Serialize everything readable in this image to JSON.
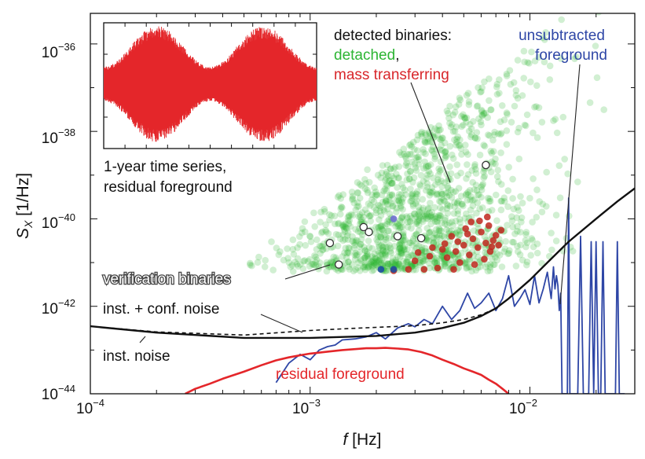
{
  "chart_data": {
    "type": "scatter",
    "title": "",
    "xlabel_var": "f",
    "xlabel_unit": " [Hz]",
    "ylabel_var": "S",
    "ylabel_sub": "X",
    "ylabel_unit": " [1/Hz]",
    "x_scale": "log",
    "y_scale": "log",
    "xlim": [
      0.0001,
      0.03
    ],
    "ylim": [
      1e-44,
      5e-36
    ],
    "x_ticks": [
      {
        "value": 0.0001,
        "label_base": "10",
        "label_exp": "−4"
      },
      {
        "value": 0.001,
        "label_base": "10",
        "label_exp": "−3"
      },
      {
        "value": 0.01,
        "label_base": "10",
        "label_exp": "−2"
      }
    ],
    "y_ticks": [
      {
        "value": 1e-44,
        "label_base": "10",
        "label_exp": "−44"
      },
      {
        "value": 1e-42,
        "label_base": "10",
        "label_exp": "−42"
      },
      {
        "value": 1e-40,
        "label_base": "10",
        "label_exp": "−40"
      },
      {
        "value": 1e-38,
        "label_base": "10",
        "label_exp": "−38"
      },
      {
        "value": 1e-36,
        "label_base": "10",
        "label_exp": "−36"
      }
    ],
    "colors": {
      "detached": "#2db534",
      "mass_transferring": "#c0271e",
      "foreground": "#2e46a6",
      "residual": "#e4262a",
      "noise": "#111111"
    },
    "series": [
      {
        "name": "inst. noise",
        "style": "solid",
        "x": [
          0.0001,
          0.0002,
          0.0005,
          0.001,
          0.002,
          0.003,
          0.004,
          0.005,
          0.006,
          0.007,
          0.008,
          0.01,
          0.012,
          0.015,
          0.02,
          0.025,
          0.03
        ],
        "y": [
          3.5e-43,
          2.5e-43,
          1.9e-43,
          1.9e-43,
          2.1e-43,
          2.5e-43,
          3.2e-43,
          4.2e-43,
          6e-43,
          9e-43,
          1.5e-42,
          4e-42,
          1e-41,
          3e-41,
          1e-40,
          2.5e-40,
          5e-40
        ]
      },
      {
        "name": "inst. + conf. noise",
        "style": "dashed",
        "x": [
          0.0001,
          0.0002,
          0.0005,
          0.001,
          0.0015,
          0.002,
          0.003,
          0.004,
          0.005,
          0.006,
          0.007,
          0.008,
          0.01
        ],
        "y": [
          3.5e-43,
          2.6e-43,
          2.2e-43,
          2.8e-43,
          3.1e-43,
          3.3e-43,
          3.6e-43,
          4.2e-43,
          5e-43,
          6.4e-43,
          9e-43,
          1.5e-42,
          4e-42
        ]
      },
      {
        "name": "unsubtracted foreground",
        "style": "solid",
        "x": [
          0.0007,
          0.0008,
          0.0009,
          0.001,
          0.0011,
          0.0012,
          0.0013,
          0.0014,
          0.0016,
          0.0018,
          0.002,
          0.0022,
          0.0025,
          0.0028,
          0.003,
          0.0033,
          0.0036,
          0.004,
          0.0044,
          0.0048,
          0.0052,
          0.0056,
          0.006,
          0.0065,
          0.007,
          0.0075,
          0.008,
          0.0085,
          0.009,
          0.0095,
          0.01,
          0.0105,
          0.011,
          0.0115,
          0.012,
          0.0125,
          0.0128,
          0.013,
          0.0132,
          0.0134,
          0.0136,
          0.0138,
          0.014,
          0.0142,
          0.0144,
          0.0148,
          0.015,
          0.0152,
          0.0155,
          0.016,
          0.0165,
          0.017,
          0.0175,
          0.018,
          0.0185,
          0.019,
          0.0195,
          0.02,
          0.0205,
          0.021,
          0.0215,
          0.022,
          0.0225,
          0.023,
          0.0235,
          0.024,
          0.0245,
          0.025,
          0.0255,
          0.026,
          0.0265,
          0.027
        ],
        "y": [
          1.8e-44,
          5e-44,
          8e-44,
          6e-44,
          1e-43,
          1.2e-43,
          1.3e-43,
          1.7e-43,
          1.8e-43,
          2e-43,
          2.5e-43,
          1.8e-43,
          3.2e-43,
          4e-43,
          3.4e-43,
          5e-43,
          4e-43,
          1e-42,
          5e-43,
          8e-43,
          2e-42,
          9e-43,
          1.2e-42,
          2e-42,
          8e-43,
          1.5e-42,
          5e-42,
          1e-42,
          1.5e-42,
          2.4e-42,
          1.1e-42,
          5e-42,
          1.2e-42,
          2.5e-42,
          6e-42,
          1.5e-42,
          8e-42,
          2.5e-42,
          5e-42,
          3e-42,
          8e-43,
          2e-42,
          1e-44,
          1e-44,
          1e-44,
          1e-44,
          3e-40,
          1e-44,
          1e-44,
          1e-44,
          1e-44,
          4e-41,
          1e-44,
          1e-44,
          1e-44,
          3e-41,
          1e-44,
          3e-41,
          1e-44,
          1e-44,
          3e-41,
          1e-44,
          1e-44,
          1e-44,
          1e-44,
          1e-44,
          1e-44,
          3e-41,
          1e-44,
          1e-44,
          1e-44,
          1e-44
        ]
      },
      {
        "name": "residual foreground",
        "style": "solid",
        "x": [
          0.00027,
          0.0003,
          0.00035,
          0.0004,
          0.0005,
          0.0006,
          0.0007,
          0.0008,
          0.0009,
          0.001,
          0.0012,
          0.0014,
          0.0016,
          0.0018,
          0.002,
          0.0022,
          0.0025,
          0.0028,
          0.0032,
          0.0036,
          0.004,
          0.0045,
          0.005,
          0.0055,
          0.006,
          0.0065,
          0.007,
          0.0075,
          0.008
        ],
        "y": [
          1e-44,
          1.3e-44,
          1.7e-44,
          2.2e-44,
          3.2e-44,
          4.5e-44,
          5.8e-44,
          6.8e-44,
          7.6e-44,
          8.3e-44,
          9.2e-44,
          1e-43,
          1.05e-43,
          1.1e-43,
          1.1e-43,
          1.12e-43,
          1.08e-43,
          1.03e-43,
          9e-44,
          7.5e-44,
          6e-44,
          4.8e-44,
          3.8e-44,
          3.2e-44,
          2.7e-44,
          2.1e-44,
          1.7e-44,
          1.3e-44,
          1e-44
        ]
      }
    ],
    "scatter_detached": {
      "name": "detached",
      "count": 1400,
      "f_min": 0.0005,
      "f_max": 0.025,
      "floor_amplitude": 7e-42
    },
    "scatter_mass_transferring": {
      "name": "mass transferring",
      "points": [
        {
          "f": 0.0024,
          "S": 6.5e-42
        },
        {
          "f": 0.0028,
          "S": 7e-42
        },
        {
          "f": 0.003,
          "S": 1.1e-41
        },
        {
          "f": 0.0033,
          "S": 7e-42
        },
        {
          "f": 0.0035,
          "S": 1.4e-41
        },
        {
          "f": 0.0038,
          "S": 7.5e-42
        },
        {
          "f": 0.004,
          "S": 2e-41
        },
        {
          "f": 0.0042,
          "S": 1.3e-41
        },
        {
          "f": 0.0044,
          "S": 4e-41
        },
        {
          "f": 0.0046,
          "S": 1.8e-41
        },
        {
          "f": 0.0048,
          "S": 1e-41
        },
        {
          "f": 0.005,
          "S": 2.5e-41
        },
        {
          "f": 0.0051,
          "S": 6e-41
        },
        {
          "f": 0.0053,
          "S": 1.5e-41
        },
        {
          "f": 0.0055,
          "S": 3.5e-41
        },
        {
          "f": 0.0056,
          "S": 9e-42
        },
        {
          "f": 0.0058,
          "S": 2.2e-41
        },
        {
          "f": 0.006,
          "S": 5e-41
        },
        {
          "f": 0.0062,
          "S": 1.2e-41
        },
        {
          "f": 0.0063,
          "S": 2.8e-41
        },
        {
          "f": 0.0065,
          "S": 7e-41
        },
        {
          "f": 0.0066,
          "S": 1.8e-41
        },
        {
          "f": 0.0068,
          "S": 3.2e-41
        },
        {
          "f": 0.007,
          "S": 4.2e-41
        },
        {
          "f": 0.0072,
          "S": 2.5e-41
        },
        {
          "f": 0.0074,
          "S": 5.5e-41
        },
        {
          "f": 0.0054,
          "S": 8.5e-41
        },
        {
          "f": 0.0047,
          "S": 3e-41
        },
        {
          "f": 0.0036,
          "S": 2.2e-41
        },
        {
          "f": 0.0031,
          "S": 1.7e-41
        },
        {
          "f": 0.0045,
          "S": 7e-42
        },
        {
          "f": 0.0064,
          "S": 1.1e-40
        },
        {
          "f": 0.0059,
          "S": 9e-41
        },
        {
          "f": 0.0041,
          "S": 2.7e-41
        },
        {
          "f": 0.0052,
          "S": 4.5e-41
        },
        {
          "f": 0.0067,
          "S": 2.3e-41
        }
      ]
    },
    "scatter_foreground_blue": {
      "name": "detected (blue)",
      "points": [
        {
          "f": 0.0021,
          "S": 7e-42
        },
        {
          "f": 0.0024,
          "S": 7e-42
        },
        {
          "f": 0.0024,
          "S": 1e-40
        }
      ]
    },
    "scatter_verification": {
      "name": "verification binaries",
      "points": [
        {
          "f": 0.00123,
          "S": 2.8e-41
        },
        {
          "f": 0.00135,
          "S": 9e-42
        },
        {
          "f": 0.00175,
          "S": 6.5e-41
        },
        {
          "f": 0.00185,
          "S": 5e-41
        },
        {
          "f": 0.0025,
          "S": 4e-41
        },
        {
          "f": 0.0032,
          "S": 3.6e-41
        },
        {
          "f": 0.0063,
          "S": 1.7e-39
        }
      ]
    },
    "inset": {
      "label_line1": "1-year time series,",
      "label_line2": "residual foreground",
      "color": "#e4262a"
    },
    "annotations": {
      "detected_title": "detected binaries:",
      "detached_label": "detached",
      "comma": ",",
      "mass_transferring_label": "mass transferring",
      "unsubtracted_line1": "unsubtracted",
      "unsubtracted_line2": "foreground",
      "verification_label": "verification binaries",
      "inst_conf_label": "inst. + conf. noise",
      "inst_label": "inst. noise",
      "residual_label": "residual foreground"
    }
  }
}
